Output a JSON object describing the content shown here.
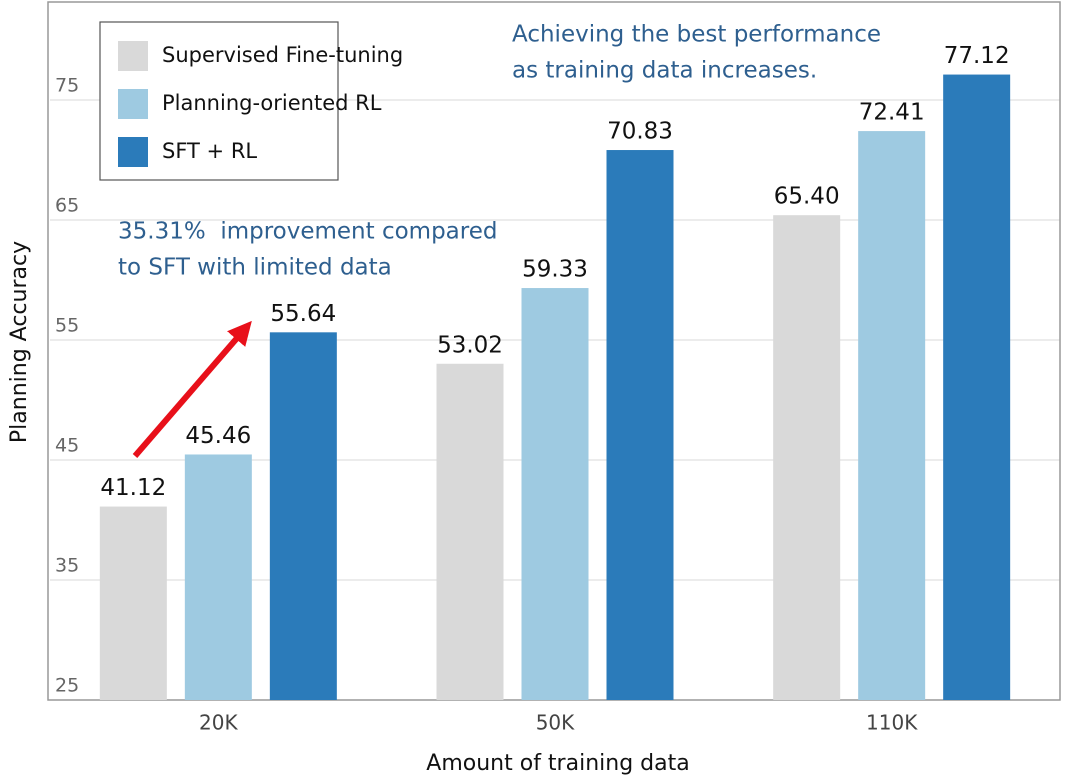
{
  "chart_data": {
    "type": "bar",
    "x_label": "Amount of training data",
    "y_label": "Planning Accuracy",
    "categories": [
      "20K",
      "50K",
      "110K"
    ],
    "series": [
      {
        "name": "Supervised Fine-tuning",
        "color": "#d9d9d9",
        "values": [
          41.12,
          53.02,
          65.4
        ],
        "value_labels": [
          "41.12",
          "53.02",
          "65.40"
        ]
      },
      {
        "name": "Planning-oriented RL",
        "color": "#9ecae1",
        "values": [
          45.46,
          59.33,
          72.41
        ],
        "value_labels": [
          "45.46",
          "59.33",
          "72.41"
        ]
      },
      {
        "name": "SFT + RL",
        "color": "#2b7bba",
        "values": [
          55.64,
          70.83,
          77.12
        ],
        "value_labels": [
          "55.64",
          "70.83",
          "77.12"
        ]
      }
    ],
    "ylim": [
      25,
      83
    ],
    "yticks": [
      25,
      35,
      45,
      55,
      65,
      75
    ],
    "grid": true,
    "legend": "upper left",
    "annotations": [
      {
        "lines": [
          "Achieving the best performance",
          "as training data increases."
        ]
      },
      {
        "lines": [
          "35.31%  improvement compared",
          "to SFT with limited data"
        ]
      }
    ]
  }
}
